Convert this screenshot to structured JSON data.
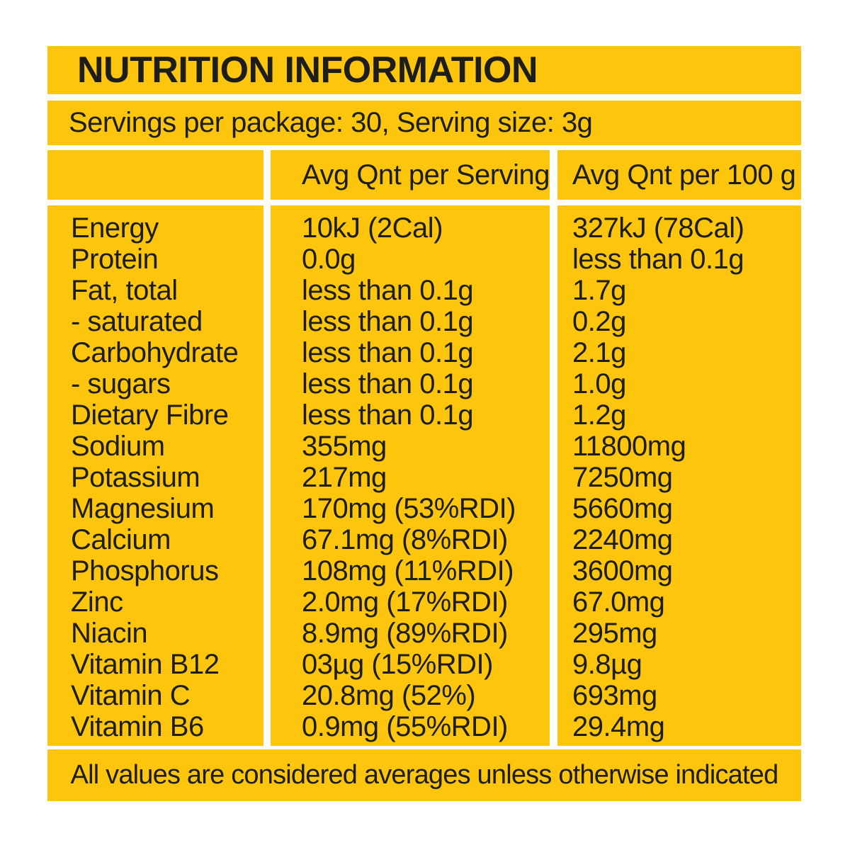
{
  "label": {
    "title": "NUTRITION INFORMATION",
    "servings_line": "Servings per package: 30, Serving size: 3g",
    "columns": [
      "",
      "Avg Qnt per Serving",
      "Avg Qnt per 100 g"
    ],
    "rows": [
      {
        "nutrient": "Energy",
        "per_serving": "10kJ (2Cal)",
        "per_100g": "327kJ (78Cal)"
      },
      {
        "nutrient": "Protein",
        "per_serving": "0.0g",
        "per_100g": "less than 0.1g"
      },
      {
        "nutrient": "Fat, total",
        "per_serving": "less than 0.1g",
        "per_100g": "1.7g"
      },
      {
        "nutrient": "- saturated",
        "per_serving": "less than 0.1g",
        "per_100g": "0.2g"
      },
      {
        "nutrient": "Carbohydrate",
        "per_serving": "less than 0.1g",
        "per_100g": "2.1g"
      },
      {
        "nutrient": "- sugars",
        "per_serving": "less than 0.1g",
        "per_100g": "1.0g"
      },
      {
        "nutrient": "Dietary Fibre",
        "per_serving": "less than 0.1g",
        "per_100g": "1.2g"
      },
      {
        "nutrient": "Sodium",
        "per_serving": "355mg",
        "per_100g": "11800mg"
      },
      {
        "nutrient": "Potassium",
        "per_serving": "217mg",
        "per_100g": "7250mg"
      },
      {
        "nutrient": "Magnesium",
        "per_serving": "170mg (53%RDI)",
        "per_100g": "5660mg"
      },
      {
        "nutrient": "Calcium",
        "per_serving": "67.1mg (8%RDI)",
        "per_100g": "2240mg"
      },
      {
        "nutrient": "Phosphorus",
        "per_serving": "108mg (11%RDI)",
        "per_100g": "3600mg"
      },
      {
        "nutrient": "Zinc",
        "per_serving": "2.0mg (17%RDI)",
        "per_100g": "67.0mg"
      },
      {
        "nutrient": "Niacin",
        "per_serving": "8.9mg (89%RDI)",
        "per_100g": "295mg"
      },
      {
        "nutrient": "Vitamin B12",
        "per_serving": "03µg (15%RDI)",
        "per_100g": "9.8µg"
      },
      {
        "nutrient": "Vitamin C",
        "per_serving": "20.8mg (52%)",
        "per_100g": "693mg"
      },
      {
        "nutrient": "Vitamin B6",
        "per_serving": "0.9mg (55%RDI)",
        "per_100g": "29.4mg"
      }
    ],
    "footer": "All values are considered averages unless otherwise indicated",
    "colors": {
      "panel_background": "#FDC60D",
      "text": "#1D1D1B",
      "page_background": "#FFFFFF"
    }
  }
}
